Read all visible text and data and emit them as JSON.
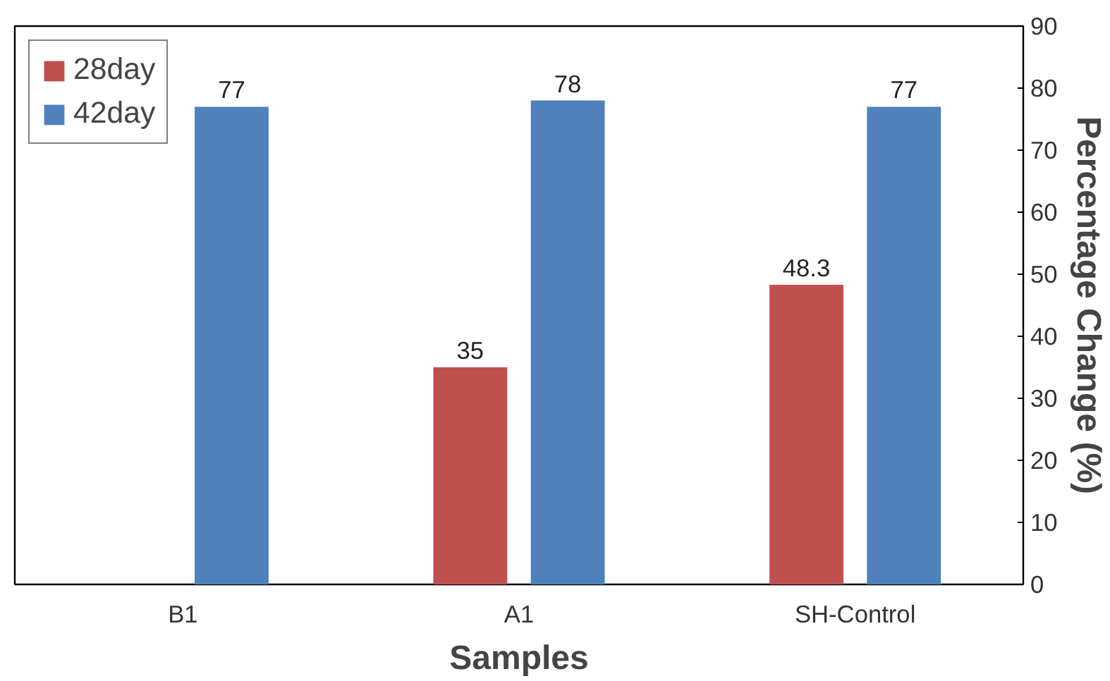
{
  "chart_data": {
    "type": "bar",
    "xlabel": "Samples",
    "ylabel": "Percentage Change (%)",
    "categories": [
      "B1",
      "A1",
      "SH-Control"
    ],
    "series": [
      {
        "name": "28day",
        "color": "#c0504d",
        "values": [
          null,
          35,
          48.3
        ]
      },
      {
        "name": "42day",
        "color": "#4f81bd",
        "values": [
          77,
          78,
          77
        ]
      }
    ],
    "ylim": [
      0,
      90
    ],
    "yticks": [
      0,
      10,
      20,
      30,
      40,
      50,
      60,
      70,
      80,
      90
    ],
    "data_labels": true,
    "legend": "top left",
    "grid": false
  }
}
